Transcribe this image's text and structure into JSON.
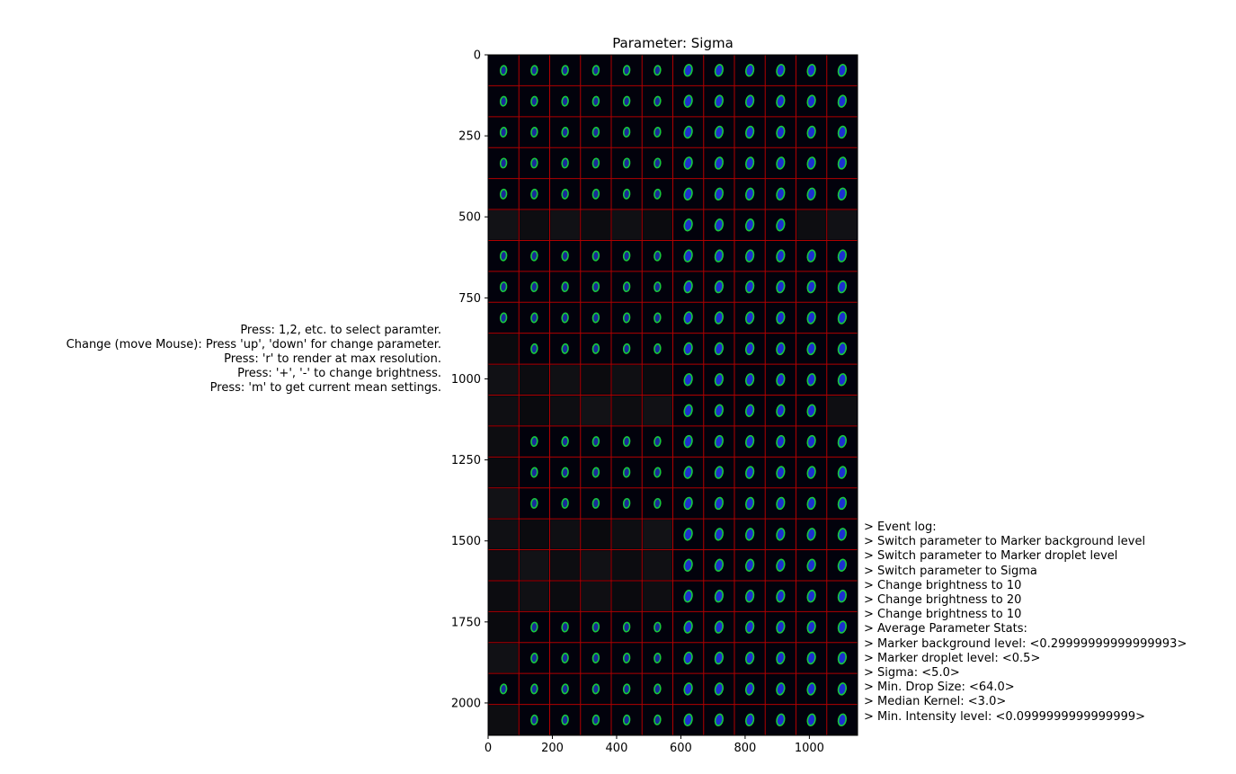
{
  "title": "Parameter: Sigma",
  "chart_data": {
    "type": "heatmap",
    "y_ticks": [
      0,
      250,
      500,
      750,
      1000,
      1250,
      1500,
      1750,
      2000
    ],
    "x_ticks": [
      0,
      200,
      400,
      600,
      800,
      1000
    ],
    "xlim": [
      0,
      1150
    ],
    "ylim": [
      2100,
      0
    ],
    "grid": {
      "columns": 12,
      "rows": 22,
      "line_color": "#b00000",
      "background": "#02020c"
    },
    "empty_cells": {
      "5": [
        0,
        1,
        2,
        3,
        4,
        5,
        10,
        11
      ],
      "9": [
        0
      ],
      "10": [
        0,
        1,
        2,
        3,
        4,
        5
      ],
      "11": [
        0,
        1,
        2,
        3,
        4,
        5,
        11
      ],
      "12": [
        0
      ],
      "13": [
        0
      ],
      "14": [
        0
      ],
      "15": [
        0,
        1,
        2,
        3,
        4,
        5
      ],
      "16": [
        0,
        1,
        2,
        3,
        4,
        5
      ],
      "17": [
        0,
        1,
        2,
        3,
        4,
        5
      ],
      "18": [
        0
      ],
      "19": [
        0
      ],
      "21": [
        0
      ]
    }
  },
  "help_lines": [
    "Press: 1,2, etc. to select paramter.",
    "Change (move Mouse): Press 'up', 'down' for change parameter.",
    "Press: 'r' to render at max resolution.",
    "Press: '+', '-' to change brightness.",
    "Press: 'm' to get current mean settings."
  ],
  "event_log": [
    "> Event log:",
    "> Switch parameter to Marker background level",
    "> Switch parameter to Marker droplet level",
    "> Switch parameter to Sigma",
    "> Change brightness to 10",
    "> Change brightness to 20",
    "> Change brightness to 10",
    "> Average Parameter Stats:",
    "> Marker background level: <0.29999999999999993>",
    "> Marker droplet level: <0.5>",
    "> Sigma: <5.0>",
    "> Min. Drop Size: <64.0>",
    "> Median Kernel: <3.0>",
    "> Min. Intensity level: <0.0999999999999999>"
  ]
}
